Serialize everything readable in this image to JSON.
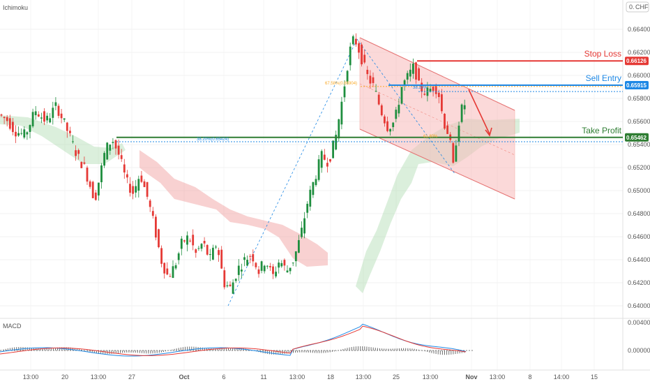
{
  "header": {
    "indicator_title": "Ichimoku",
    "currency": "CHF",
    "currency_prefix": "0."
  },
  "macd_panel": {
    "title": "MACD"
  },
  "chart_data": {
    "type": "candlestick",
    "symbol_currency": "CHF",
    "price_axis": {
      "ticks": [
        "0.66400",
        "0.66200",
        "0.66000",
        "0.65800",
        "0.65600",
        "0.65400",
        "0.65200",
        "0.65000",
        "0.64800",
        "0.64600",
        "0.64400",
        "0.64200",
        "0.64000"
      ],
      "range": [
        0.6392,
        0.6652
      ]
    },
    "time_axis": {
      "ticks": [
        "13:00",
        "20",
        "13:00",
        "27",
        "Oct",
        "6",
        "11",
        "13:00",
        "18",
        "13:00",
        "25",
        "13:00",
        "Nov",
        "13:00",
        "8",
        "14:00",
        "15"
      ]
    },
    "levels": [
      {
        "name": "Stop Loss",
        "value": 0.66126,
        "label": "0.66126",
        "color": "#e53935"
      },
      {
        "name": "Sell Entry",
        "value": 0.65915,
        "label": "0.65915",
        "color": "#1e88e5"
      },
      {
        "name": "Take Profit",
        "value": 0.65462,
        "label": "0.65462",
        "color": "#2e7d32"
      }
    ],
    "fib_labels": [
      {
        "text": "67.58%(0.65904)",
        "color": "#f9a825"
      },
      {
        "text": "38.20%(0.65424)",
        "color": "#1e88e5"
      },
      {
        "text": "38.20%",
        "color": "#1e88e5"
      },
      {
        "text": "61.80%",
        "color": "#f9a825"
      }
    ],
    "macd": {
      "ticks": [
        "0.00400",
        "0.00000"
      ]
    },
    "colors": {
      "up": "#26a69a",
      "down": "#ef5350",
      "candle_up": "#1e8e3e",
      "candle_down": "#e53935",
      "cloud_green": "#a5d6a7",
      "cloud_red": "#ef9a9a",
      "channel_fill": "#f8bbbb",
      "macd_line": "#1e88e5",
      "signal_line": "#e53935"
    }
  }
}
